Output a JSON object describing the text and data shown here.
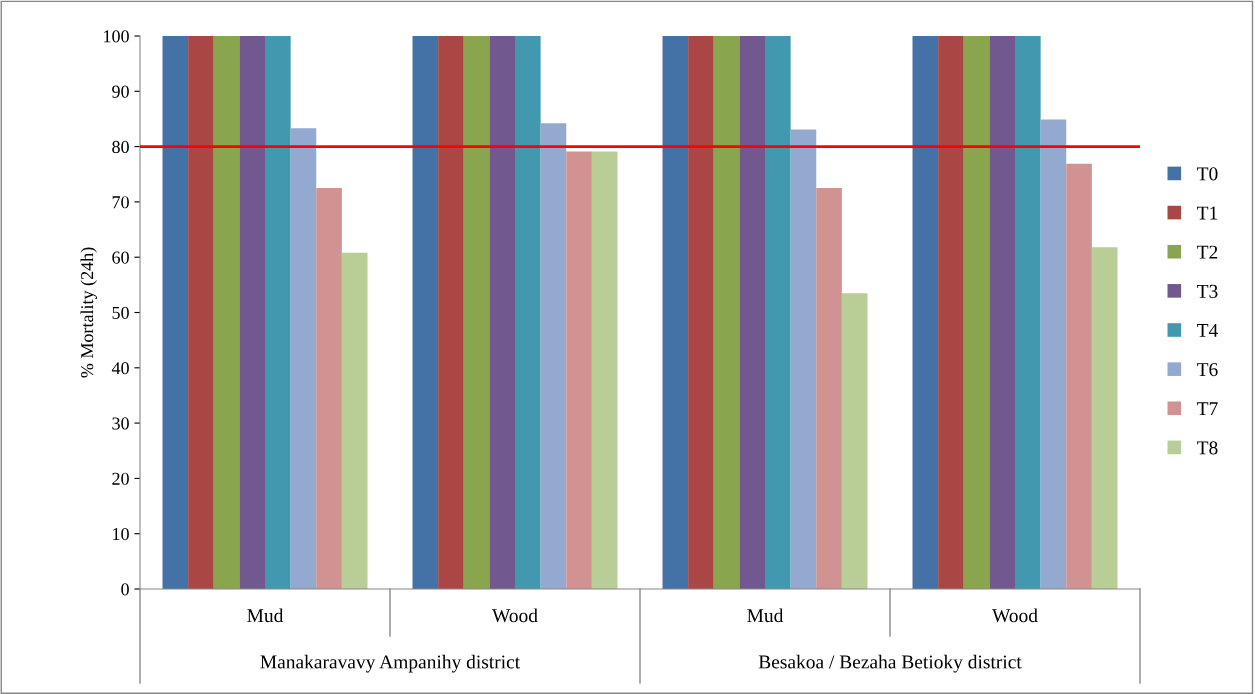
{
  "chart_data": {
    "type": "bar",
    "ylabel": "% Mortality (24h)",
    "categories": [
      "Mud",
      "Wood",
      "Mud",
      "Wood"
    ],
    "annotations": [
      "Manakaravavy Ampanihy district",
      "Besakoa / Bezaha Betioky district"
    ],
    "series": [
      {
        "name": "T0",
        "color": "#4471a6",
        "values": [
          100,
          100,
          100,
          100
        ]
      },
      {
        "name": "T1",
        "color": "#aa4643",
        "values": [
          100,
          100,
          100,
          100
        ]
      },
      {
        "name": "T2",
        "color": "#89a54e",
        "values": [
          100,
          100,
          100,
          100
        ]
      },
      {
        "name": "T3",
        "color": "#71588f",
        "values": [
          100,
          100,
          100,
          100
        ]
      },
      {
        "name": "T4",
        "color": "#4198af",
        "values": [
          100,
          100,
          100,
          100
        ]
      },
      {
        "name": "T6",
        "color": "#93a9cf",
        "values": [
          83.3,
          84.2,
          83.1,
          84.9
        ]
      },
      {
        "name": "T7",
        "color": "#d09392",
        "values": [
          72.5,
          79.1,
          72.5,
          76.9
        ]
      },
      {
        "name": "T8",
        "color": "#b9cd96",
        "values": [
          60.8,
          79.1,
          53.5,
          61.8
        ]
      }
    ],
    "ylim": [
      0,
      100
    ],
    "yticks": [
      0,
      10,
      20,
      30,
      40,
      50,
      60,
      70,
      80,
      90,
      100
    ],
    "ref_lines": [
      {
        "axis": "y",
        "value": 80,
        "color": "#ff0000"
      }
    ],
    "grid": false,
    "legend": "right"
  }
}
